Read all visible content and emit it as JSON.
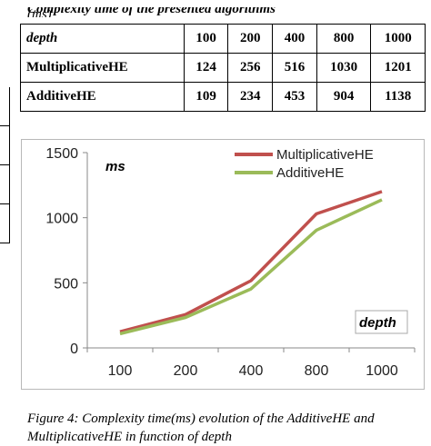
{
  "table_caption": {
    "title": "Complexity time of the presented algorithms",
    "unit": "(ms)"
  },
  "table": {
    "rows": [
      {
        "label": "depth",
        "values": [
          "100",
          "200",
          "400",
          "800",
          "1000"
        ]
      },
      {
        "label": "MultiplicativeHE",
        "values": [
          "124",
          "256",
          "516",
          "1030",
          "1201"
        ]
      },
      {
        "label": "AdditiveHE",
        "values": [
          "109",
          "234",
          "453",
          "904",
          "1138"
        ]
      }
    ]
  },
  "chart_data": {
    "type": "line",
    "categories": [
      "100",
      "200",
      "400",
      "800",
      "1000"
    ],
    "series": [
      {
        "name": "MultiplicativeHE",
        "values": [
          124,
          256,
          516,
          1030,
          1201
        ],
        "color": "#c0504d"
      },
      {
        "name": "AdditiveHE",
        "values": [
          109,
          234,
          453,
          904,
          1138
        ],
        "color": "#9bbb59"
      }
    ],
    "ylabel": "ms",
    "xlabel": "depth",
    "ylim": [
      0,
      1500
    ],
    "yticks": [
      "0",
      "500",
      "1000",
      "1500"
    ],
    "grid": false,
    "legend": "top-right"
  },
  "figure_caption": "Figure 4: Complexity time(ms) evolution of the AdditiveHE and MultiplicativeHE in function of depth"
}
